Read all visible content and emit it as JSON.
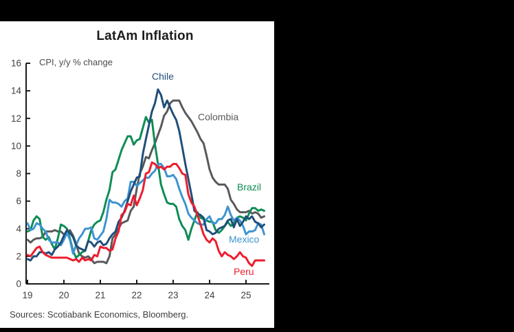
{
  "page": {
    "background": "#000000",
    "panel_background": "#ffffff",
    "axis_color": "#1a1a1a",
    "tick_label_color": "#3f3f3f"
  },
  "chart_data": {
    "type": "line",
    "title": "LatAm Inflation",
    "subtitle": "CPI, y/y % change",
    "source": "Sources: Scotiabank Economics, Bloomberg.",
    "grid": false,
    "legend_position": "inline-labels",
    "x_axis": {
      "tick_labels": [
        "19",
        "20",
        "21",
        "22",
        "23",
        "24",
        "25"
      ],
      "start_year": 2019,
      "frequency": "monthly"
    },
    "y_axis": {
      "min": 0,
      "max": 16,
      "tick_step": 2
    },
    "series": [
      {
        "name": "Brazil",
        "color": "#0E8C55",
        "values": [
          3.8,
          3.9,
          4.6,
          4.9,
          4.7,
          3.4,
          3.2,
          3.4,
          2.9,
          2.5,
          3.3,
          4.3,
          4.2,
          4.0,
          3.3,
          2.4,
          1.9,
          2.1,
          2.3,
          2.4,
          3.1,
          3.9,
          4.3,
          4.5,
          4.6,
          5.2,
          6.1,
          6.8,
          8.1,
          8.3,
          9.0,
          9.7,
          10.2,
          10.7,
          10.7,
          10.1,
          10.4,
          10.5,
          11.3,
          12.1,
          11.7,
          11.9,
          10.1,
          8.7,
          7.2,
          6.5,
          5.9,
          5.8,
          5.8,
          5.6,
          4.7,
          4.2,
          3.9,
          3.2,
          4.0,
          4.6,
          5.2,
          4.8,
          4.7,
          4.6,
          4.5,
          4.5,
          3.9,
          3.7,
          3.9,
          4.2,
          4.5,
          4.2,
          4.4,
          4.8,
          4.9,
          4.8,
          4.6,
          5.1,
          5.5,
          5.5,
          5.3,
          5.4,
          5.3
        ]
      },
      {
        "name": "Chile",
        "color": "#1F4E79",
        "values": [
          1.8,
          1.7,
          2.0,
          2.0,
          2.3,
          2.3,
          2.2,
          2.3,
          2.1,
          2.5,
          2.7,
          3.0,
          3.5,
          3.9,
          3.7,
          3.4,
          2.8,
          2.6,
          2.5,
          2.4,
          3.1,
          3.0,
          2.7,
          3.0,
          3.1,
          2.8,
          2.9,
          3.3,
          3.6,
          3.8,
          4.5,
          4.8,
          5.3,
          6.0,
          6.7,
          7.2,
          7.7,
          7.8,
          9.4,
          10.5,
          11.5,
          12.5,
          13.1,
          14.1,
          13.7,
          12.8,
          13.3,
          12.8,
          12.3,
          11.9,
          11.1,
          9.9,
          8.7,
          7.6,
          6.5,
          5.3,
          5.1,
          5.0,
          4.8,
          3.9,
          3.8,
          3.6,
          3.7,
          4.0,
          4.1,
          4.2,
          4.6,
          4.7,
          4.1,
          4.7,
          4.2,
          4.5,
          4.9,
          4.7,
          4.9,
          4.5,
          4.4,
          4.1,
          4.3
        ]
      },
      {
        "name": "Colombia",
        "color": "#58595B",
        "values": [
          3.2,
          3.0,
          3.2,
          3.3,
          3.3,
          3.4,
          3.8,
          3.8,
          3.8,
          3.9,
          3.8,
          3.8,
          3.6,
          3.7,
          3.9,
          3.5,
          2.9,
          2.2,
          2.0,
          1.9,
          2.0,
          1.8,
          1.5,
          1.6,
          1.6,
          1.6,
          1.5,
          2.0,
          3.3,
          3.6,
          4.0,
          4.4,
          4.5,
          4.6,
          5.3,
          5.6,
          6.9,
          8.0,
          8.5,
          9.2,
          9.1,
          9.7,
          10.2,
          10.8,
          11.4,
          12.2,
          12.5,
          13.1,
          13.3,
          13.3,
          13.3,
          12.8,
          12.4,
          12.1,
          11.8,
          11.4,
          11.0,
          10.5,
          10.2,
          9.3,
          8.3,
          7.7,
          7.4,
          7.2,
          7.2,
          7.2,
          6.9,
          6.1,
          5.8,
          5.4,
          5.2,
          5.2,
          5.2,
          5.3,
          5.1,
          5.2,
          5.1,
          4.8,
          4.9
        ]
      },
      {
        "name": "Mexico",
        "color": "#3D94D0",
        "values": [
          4.4,
          3.9,
          4.0,
          4.4,
          4.3,
          4.0,
          3.8,
          3.2,
          3.0,
          3.0,
          3.0,
          2.8,
          3.2,
          3.7,
          3.2,
          2.2,
          2.8,
          3.3,
          3.6,
          4.0,
          4.0,
          4.1,
          3.3,
          3.2,
          3.5,
          3.8,
          4.7,
          6.1,
          5.9,
          5.9,
          5.8,
          5.6,
          6.0,
          6.2,
          7.4,
          7.4,
          7.1,
          7.3,
          7.5,
          7.7,
          7.7,
          8.0,
          8.2,
          8.7,
          8.7,
          8.4,
          7.8,
          7.8,
          7.9,
          7.6,
          6.9,
          6.3,
          5.8,
          5.1,
          4.8,
          4.6,
          4.4,
          4.3,
          4.3,
          4.7,
          4.9,
          4.4,
          4.4,
          4.7,
          4.7,
          5.0,
          5.6,
          5.0,
          4.6,
          4.8,
          4.6,
          4.2,
          3.6,
          3.8,
          3.8,
          3.9,
          4.4,
          4.3,
          3.6
        ]
      },
      {
        "name": "Peru",
        "color": "#ED1C2E",
        "values": [
          2.1,
          2.0,
          2.3,
          2.6,
          2.7,
          2.3,
          2.1,
          2.0,
          1.9,
          1.9,
          1.9,
          1.9,
          1.9,
          1.9,
          1.8,
          1.7,
          1.8,
          1.6,
          1.9,
          1.7,
          1.8,
          1.7,
          2.1,
          2.0,
          2.7,
          2.6,
          2.6,
          2.4,
          2.5,
          3.3,
          3.8,
          5.0,
          5.2,
          5.8,
          5.7,
          6.4,
          5.7,
          6.2,
          6.8,
          8.0,
          8.1,
          8.8,
          8.7,
          8.4,
          8.5,
          8.3,
          8.5,
          8.5,
          8.7,
          8.7,
          8.4,
          8.0,
          7.9,
          6.5,
          5.9,
          5.6,
          5.0,
          4.3,
          3.6,
          3.2,
          3.0,
          3.3,
          3.1,
          2.4,
          2.0,
          2.3,
          2.1,
          2.0,
          1.8,
          2.0,
          2.3,
          2.0,
          1.9,
          1.5,
          1.3,
          1.7,
          1.7,
          1.7,
          1.7
        ]
      }
    ]
  }
}
